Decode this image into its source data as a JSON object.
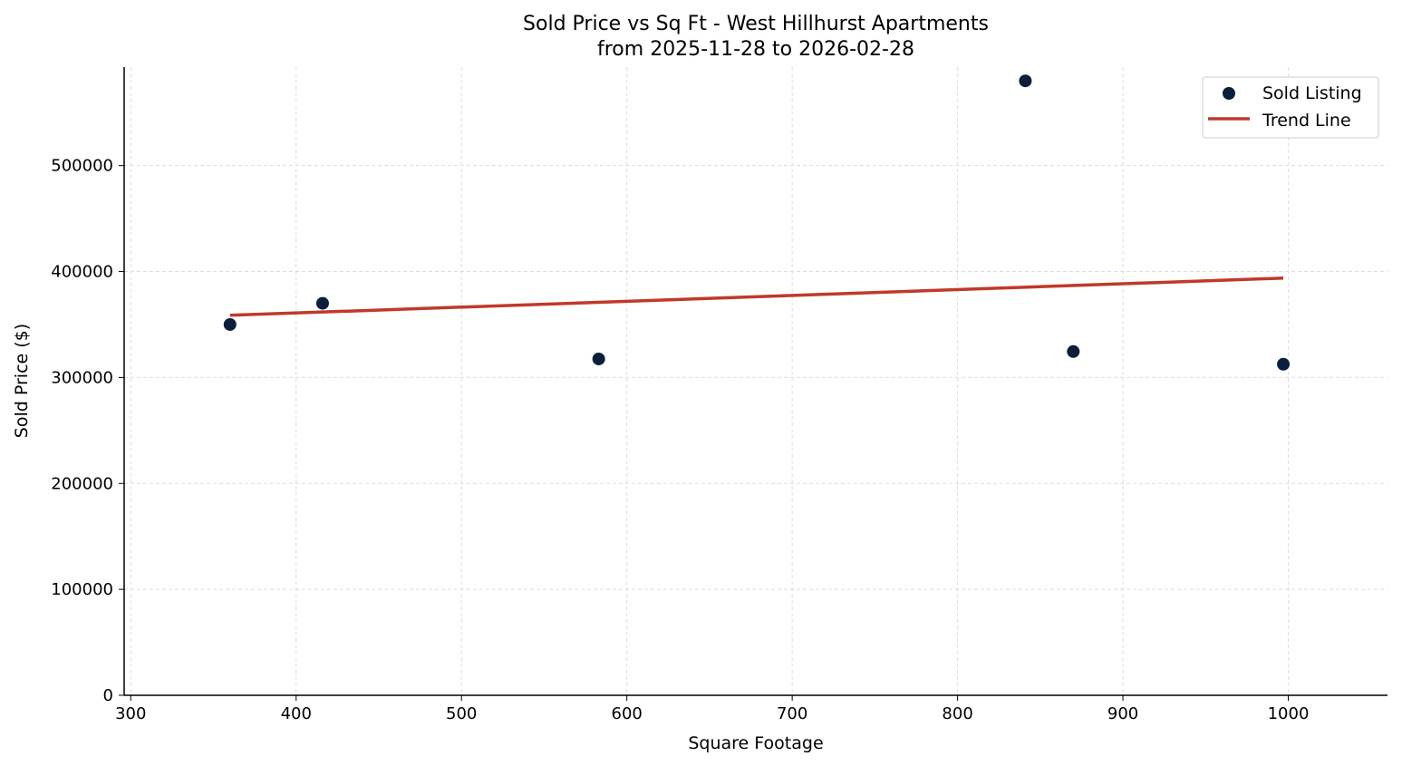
{
  "chart_data": {
    "type": "scatter",
    "title": "Sold Price vs Sq Ft - West Hillhurst Apartments",
    "subtitle": "from 2025-11-28 to 2026-02-28",
    "xlabel": "Square Footage",
    "ylabel": "Sold Price ($)",
    "xlim": [
      296,
      1060
    ],
    "ylim": [
      0,
      593000
    ],
    "xticks": [
      300,
      400,
      500,
      600,
      700,
      800,
      900,
      1000
    ],
    "yticks": [
      0,
      100000,
      200000,
      300000,
      400000,
      500000
    ],
    "grid": true,
    "legend_position": "top-right",
    "series": [
      {
        "name": "Sold Listing",
        "kind": "scatter",
        "color": "#0b1f3a",
        "points": [
          [
            360,
            350000
          ],
          [
            416,
            370000
          ],
          [
            583,
            317500
          ],
          [
            841,
            580000
          ],
          [
            870,
            324500
          ],
          [
            997,
            312500
          ]
        ]
      },
      {
        "name": "Trend Line",
        "kind": "line",
        "color": "#c0392b",
        "points": [
          [
            360,
            358700
          ],
          [
            997,
            393800
          ]
        ]
      }
    ]
  }
}
